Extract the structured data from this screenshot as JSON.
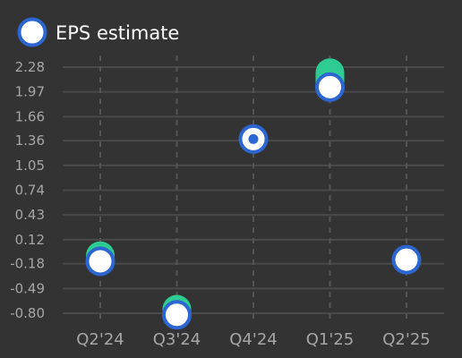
{
  "chart_data": {
    "type": "scatter",
    "title": "",
    "xlabel": "",
    "ylabel": "",
    "categories": [
      "Q2'24",
      "Q3'24",
      "Q4'24",
      "Q1'25",
      "Q2'25"
    ],
    "y_ticks": [
      "2.28",
      "1.97",
      "1.66",
      "1.36",
      "1.05",
      "0.74",
      "0.43",
      "0.12",
      "-0.18",
      "-0.49",
      "-0.80"
    ],
    "ylim": [
      -0.8,
      2.28
    ],
    "grid": {
      "horizontal": true,
      "vertical": "dashed"
    },
    "legend": {
      "position": "top-left"
    },
    "series": [
      {
        "name": "EPS estimate",
        "color": "#2c66d1",
        "marker": "hollow-circle",
        "values": [
          -0.15,
          -0.82,
          1.38,
          2.03,
          -0.13
        ]
      },
      {
        "name": "",
        "color": "#2ecc92",
        "marker": "filled-circle",
        "values": [
          -0.08,
          -0.75,
          1.38,
          2.21,
          -0.13
        ]
      }
    ],
    "surprise_line_color": "#2ecc92"
  }
}
